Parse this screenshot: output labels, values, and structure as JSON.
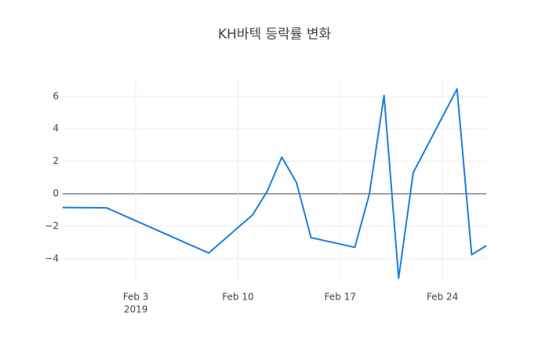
{
  "chart_data": {
    "type": "line",
    "title": "KH바텍 등락률 변화",
    "x": [
      "2019-01-29",
      "2019-02-01",
      "2019-02-08",
      "2019-02-11",
      "2019-02-12",
      "2019-02-13",
      "2019-02-14",
      "2019-02-15",
      "2019-02-18",
      "2019-02-19",
      "2019-02-20",
      "2019-02-21",
      "2019-02-22",
      "2019-02-25",
      "2019-02-26",
      "2019-02-27"
    ],
    "series": [
      {
        "color": "#1a7fe0",
        "values": [
          -0.85,
          -0.87,
          -3.65,
          -1.3,
          0.15,
          2.25,
          0.7,
          -2.7,
          -3.3,
          0,
          6.05,
          -5.2,
          1.3,
          6.45,
          -3.75,
          -3.2
        ]
      }
    ],
    "xlim": [
      "2019-01-29",
      "2019-02-27"
    ],
    "xticks": [
      {
        "value": "2019-02-03",
        "label": "Feb 3"
      },
      {
        "value": "2019-02-10",
        "label": "Feb 10"
      },
      {
        "value": "2019-02-17",
        "label": "Feb 17"
      },
      {
        "value": "2019-02-24",
        "label": "Feb 24"
      }
    ],
    "x_year_label": "2019",
    "ylim": [
      -5.5,
      7.1
    ],
    "yticks": [
      {
        "value": -4,
        "label": "−4"
      },
      {
        "value": -2,
        "label": "−2"
      },
      0,
      2,
      4,
      6
    ],
    "grid": true,
    "zeroline": true
  }
}
